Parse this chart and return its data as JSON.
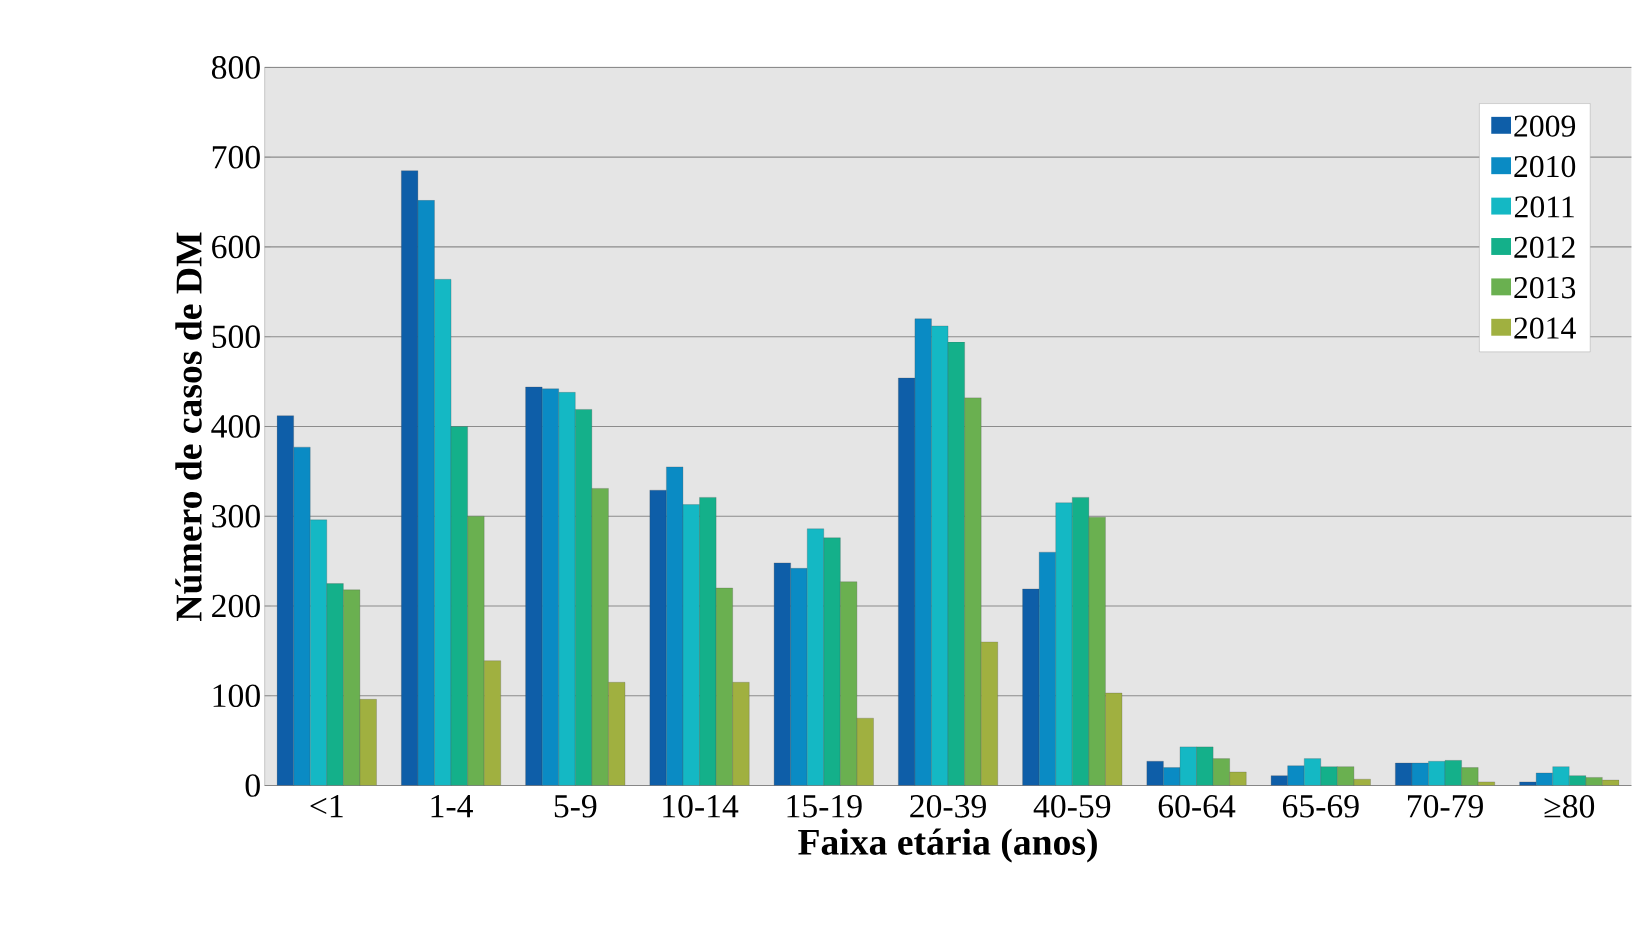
{
  "chart_data": {
    "type": "bar",
    "xlabel": "Faixa etária (anos)",
    "ylabel": "Número de casos de DM",
    "categories": [
      "<1",
      "1-4",
      "5-9",
      "10-14",
      "15-19",
      "20-39",
      "40-59",
      "60-64",
      "65-69",
      "70-79",
      "≥80"
    ],
    "series": [
      {
        "name": "2009",
        "color": "#0e5ea8",
        "values": [
          412,
          685,
          444,
          329,
          248,
          454,
          219,
          27,
          11,
          25,
          4
        ]
      },
      {
        "name": "2010",
        "color": "#0a8bc4",
        "values": [
          377,
          652,
          442,
          355,
          242,
          520,
          260,
          20,
          22,
          25,
          14
        ]
      },
      {
        "name": "2011",
        "color": "#14b8c4",
        "values": [
          296,
          564,
          438,
          313,
          286,
          512,
          315,
          43,
          30,
          27,
          21
        ]
      },
      {
        "name": "2012",
        "color": "#14b08a",
        "values": [
          225,
          400,
          419,
          321,
          276,
          494,
          321,
          43,
          21,
          28,
          11
        ]
      },
      {
        "name": "2013",
        "color": "#6ab050",
        "values": [
          218,
          300,
          331,
          220,
          227,
          432,
          299,
          30,
          21,
          20,
          9
        ]
      },
      {
        "name": "2014",
        "color": "#a0b040",
        "values": [
          96,
          139,
          115,
          115,
          75,
          160,
          103,
          15,
          7,
          4,
          6
        ]
      }
    ],
    "ylim": [
      0,
      800
    ],
    "yticks": [
      0,
      100,
      200,
      300,
      400,
      500,
      600,
      700,
      800
    ],
    "grid": "y",
    "legend": "top right"
  }
}
